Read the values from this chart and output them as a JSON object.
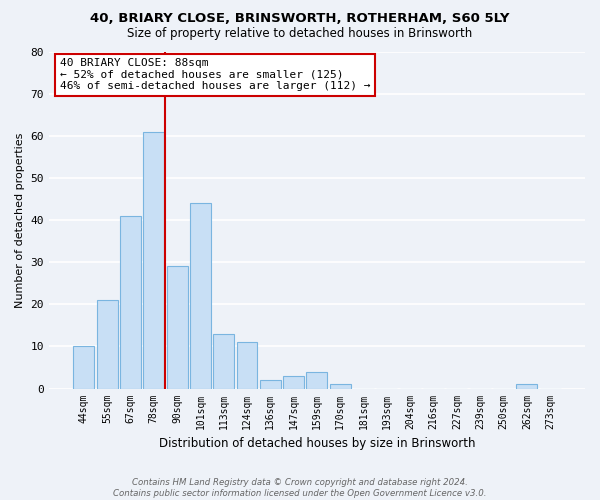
{
  "title1": "40, BRIARY CLOSE, BRINSWORTH, ROTHERHAM, S60 5LY",
  "title2": "Size of property relative to detached houses in Brinsworth",
  "xlabel": "Distribution of detached houses by size in Brinsworth",
  "ylabel": "Number of detached properties",
  "bar_color": "#c8dff5",
  "bar_edge_color": "#7ab5e0",
  "vline_color": "#cc0000",
  "categories": [
    "44sqm",
    "55sqm",
    "67sqm",
    "78sqm",
    "90sqm",
    "101sqm",
    "113sqm",
    "124sqm",
    "136sqm",
    "147sqm",
    "159sqm",
    "170sqm",
    "181sqm",
    "193sqm",
    "204sqm",
    "216sqm",
    "227sqm",
    "239sqm",
    "250sqm",
    "262sqm",
    "273sqm"
  ],
  "values": [
    10,
    21,
    41,
    61,
    29,
    44,
    13,
    11,
    2,
    3,
    4,
    1,
    0,
    0,
    0,
    0,
    0,
    0,
    0,
    1,
    0
  ],
  "ylim": [
    0,
    80
  ],
  "yticks": [
    0,
    10,
    20,
    30,
    40,
    50,
    60,
    70,
    80
  ],
  "vline_bar_idx": 3,
  "annotation_title": "40 BRIARY CLOSE: 88sqm",
  "annotation_line1": "← 52% of detached houses are smaller (125)",
  "annotation_line2": "46% of semi-detached houses are larger (112) →",
  "annotation_box_color": "#ffffff",
  "annotation_box_edge": "#cc0000",
  "footer1": "Contains HM Land Registry data © Crown copyright and database right 2024.",
  "footer2": "Contains public sector information licensed under the Open Government Licence v3.0.",
  "bg_color": "#eef2f8",
  "grid_color": "#ffffff",
  "plot_bg": "#eef2f8"
}
